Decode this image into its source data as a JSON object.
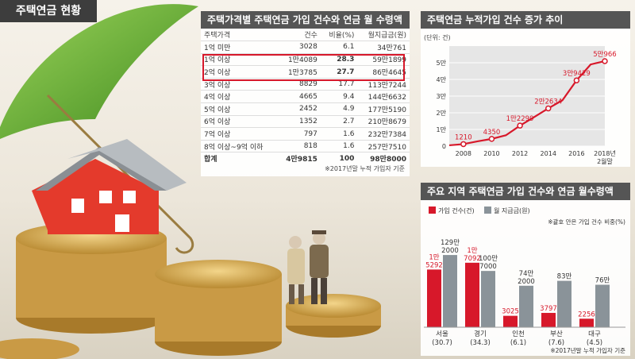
{
  "title": "주택연금 현황",
  "colors": {
    "red": "#d7182a",
    "gray": "#8a9399",
    "dark": "#555555"
  },
  "table_panel": {
    "title": "주택가격별 주택연금 가입 건수와 연금 월 수령액",
    "headers": [
      "주택가격",
      "건수",
      "비율(%)",
      "월지급금(원)"
    ],
    "rows": [
      [
        "1억 미만",
        "3028",
        "6.1",
        "34만761"
      ],
      [
        "1억 이상",
        "1만4089",
        "28.3",
        "59만1899"
      ],
      [
        "2억 이상",
        "1만3785",
        "27.7",
        "86만4645"
      ],
      [
        "3억 이상",
        "8829",
        "17.7",
        "113만7244"
      ],
      [
        "4억 이상",
        "4665",
        "9.4",
        "144만6632"
      ],
      [
        "5억 이상",
        "2452",
        "4.9",
        "177만5190"
      ],
      [
        "6억 이상",
        "1352",
        "2.7",
        "210만8679"
      ],
      [
        "7억 이상",
        "797",
        "1.6",
        "232만7384"
      ],
      [
        "8억 이상~9억 이하",
        "818",
        "1.6",
        "257만7510"
      ]
    ],
    "total": [
      "합계",
      "4만9815",
      "100",
      "98만8000"
    ],
    "note": "※2017년말 누적 가입자 기준"
  },
  "chart_data": [
    {
      "type": "line",
      "title": "주택연금 누적가입 건수 증가 추이",
      "ylabel": "(단위: 건)",
      "x": [
        "2007",
        "2008",
        "2009",
        "2010",
        "2011",
        "2012",
        "2013",
        "2014",
        "2015",
        "2016",
        "2017",
        "2018"
      ],
      "x_ticks": [
        "2008",
        "2010",
        "2012",
        "2014",
        "2016",
        "2018년"
      ],
      "x_tick_sub": "2월말",
      "y_ticks": [
        "0",
        "1만",
        "2만",
        "3만",
        "4만",
        "5만"
      ],
      "ylim": [
        0,
        60000
      ],
      "series": [
        {
          "values": [
            515,
            1210,
            2900,
            4350,
            6500,
            12299,
            17400,
            22634,
            27500,
            39429,
            49000,
            50966
          ]
        }
      ],
      "point_labels": [
        {
          "x": "2008",
          "label": "1210"
        },
        {
          "x": "2010",
          "label": "4350"
        },
        {
          "x": "2012",
          "label": "1만2299"
        },
        {
          "x": "2014",
          "label": "2만2634"
        },
        {
          "x": "2016",
          "label": "3만9429"
        },
        {
          "x": "2018",
          "label": "5만966"
        }
      ],
      "grid": true
    },
    {
      "type": "bar",
      "title": "주요 지역 주택연금 가입 건수와 연금 월수령액",
      "categories": [
        "서울",
        "경기",
        "인천",
        "부산",
        "대구"
      ],
      "category_sub": [
        "(30.7)",
        "(34.3)",
        "(6.1)",
        "(7.6)",
        "(4.5)"
      ],
      "series": [
        {
          "name": "가입 건수(건)",
          "values": [
            15292,
            17092,
            3025,
            3797,
            2256
          ],
          "labels": [
            "1만\n5292",
            "1만\n7092",
            "3025",
            "3797",
            "2256"
          ]
        },
        {
          "name": "월 지급금(원)",
          "values": [
            1292000,
            1007000,
            742000,
            830000,
            760000
          ],
          "labels": [
            "129만\n2000",
            "100만\n7000",
            "74만\n2000",
            "83만",
            "76만"
          ]
        }
      ],
      "legend": "top",
      "note": "※괄호 안은 가입 건수 비중(%)",
      "footnote": "※2017년말 누적 가입자 기준"
    }
  ]
}
